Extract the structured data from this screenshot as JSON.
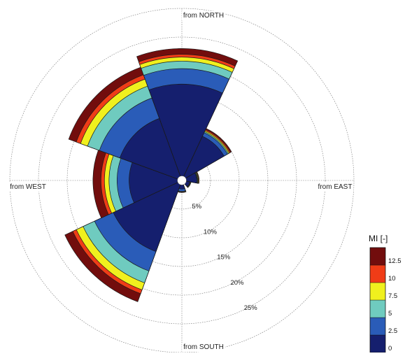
{
  "chart_data": {
    "type": "wind-rose",
    "compass_labels": {
      "north": "from NORTH",
      "east": "from EAST",
      "south": "from SOUTH",
      "west": "from WEST"
    },
    "radial_unit": "%",
    "radial_ticks": [
      5,
      10,
      15,
      20,
      25
    ],
    "radial_tick_labels": [
      "5%",
      "10%",
      "15%",
      "20%",
      "25%"
    ],
    "rmax": 30,
    "colorbar": {
      "title": "MI [-]",
      "bins": [
        0,
        2.5,
        5,
        7.5,
        10,
        12.5
      ],
      "bin_labels": [
        "0",
        "2.5",
        "5",
        "7.5",
        "10",
        "12.5"
      ],
      "colors": [
        "#151f6e",
        "#2a5cb8",
        "#6fcbbf",
        "#f0f01e",
        "#f03c17",
        "#720d0d"
      ]
    },
    "series": [
      {
        "direction_from": [
          340,
          25
        ],
        "cumulative": [
          16.8,
          19.5,
          20.8,
          21.5,
          22.0,
          23.0
        ]
      },
      {
        "direction_from": [
          25,
          60
        ],
        "cumulative": [
          8.5,
          9.2,
          9.4,
          9.6,
          9.8,
          10.0
        ]
      },
      {
        "direction_from": [
          60,
          100
        ],
        "cumulative": [
          2.6,
          2.7,
          2.8,
          2.9,
          3.0,
          3.0
        ]
      },
      {
        "direction_from": [
          100,
          140
        ],
        "cumulative": [
          1.4,
          1.5,
          1.5,
          1.6,
          1.6,
          1.6
        ]
      },
      {
        "direction_from": [
          140,
          160
        ],
        "cumulative": [
          0.6,
          0.6,
          0.6,
          0.6,
          0.6,
          0.6
        ]
      },
      {
        "direction_from": [
          160,
          200
        ],
        "cumulative": [
          1.5,
          1.9,
          2.0,
          2.0,
          2.1,
          2.1
        ]
      },
      {
        "direction_from": [
          200,
          245
        ],
        "cumulative": [
          13.2,
          16.8,
          19.0,
          20.3,
          21.0,
          22.5
        ]
      },
      {
        "direction_from": [
          245,
          290
        ],
        "cumulative": [
          9.2,
          11.3,
          12.7,
          13.5,
          14.1,
          15.5
        ]
      },
      {
        "direction_from": [
          290,
          340
        ],
        "cumulative": [
          11.5,
          15.3,
          17.5,
          18.8,
          19.6,
          21.0
        ]
      }
    ]
  }
}
